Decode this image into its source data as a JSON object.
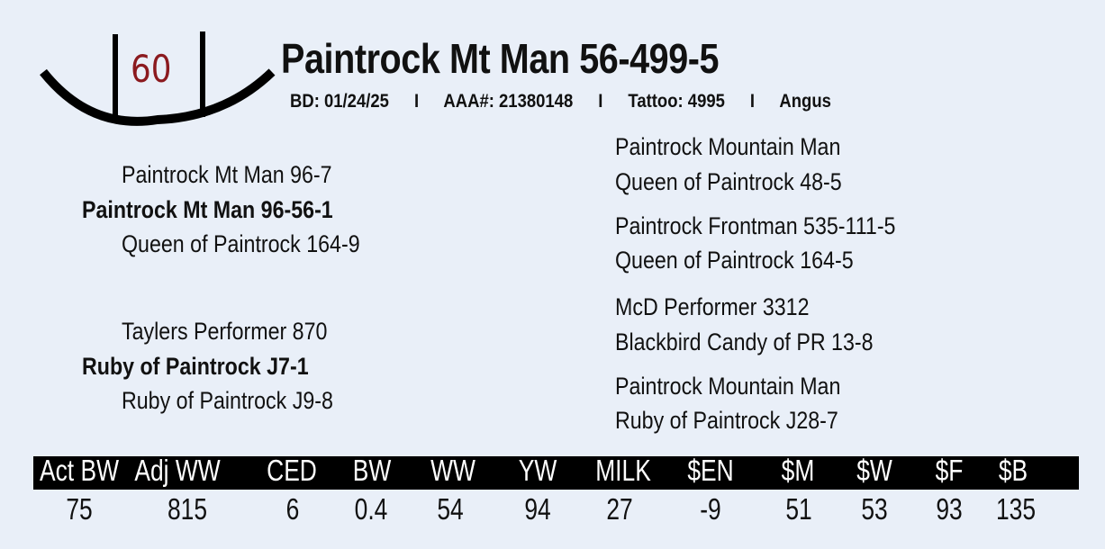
{
  "lot_number": "60",
  "animal": {
    "name": "Paintrock Mt Man 56-499-5",
    "birth_date": "BD: 01/24/25",
    "registration": "AAA#: 21380148",
    "tattoo": "Tattoo:  4995",
    "breed": "Angus",
    "separator": "I"
  },
  "pedigree": {
    "sire": "Paintrock Mt Man 96-56-1",
    "sire_sire": "Paintrock Mt Man 96-7",
    "sire_dam": "Queen of Paintrock 164-9",
    "dam": "Ruby of Paintrock J7-1",
    "dam_sire": "Taylers Performer 870",
    "dam_dam": "Ruby of Paintrock J9-8",
    "great_grandparents": [
      "Paintrock Mountain Man",
      "Queen of Paintrock 48-5",
      "Paintrock Frontman 535-111-5",
      "Queen of Paintrock 164-5",
      "McD Performer 3312",
      "Blackbird Candy of PR 13-8",
      "Paintrock Mountain Man",
      "Ruby of Paintrock J28-7"
    ]
  },
  "epds": {
    "headers": [
      "Act BW",
      "Adj WW",
      "CED",
      "BW",
      "WW",
      "YW",
      "MILK",
      "$EN",
      "$M",
      "$W",
      "$F",
      "$B"
    ],
    "values": [
      "75",
      "815",
      "6",
      "0.4",
      "54",
      "94",
      "27",
      "-9",
      "51",
      "53",
      "93",
      "135"
    ]
  },
  "colors": {
    "lot_number": "#8b1a1f",
    "header_bar": "#000000",
    "background": "#e9eff8"
  }
}
